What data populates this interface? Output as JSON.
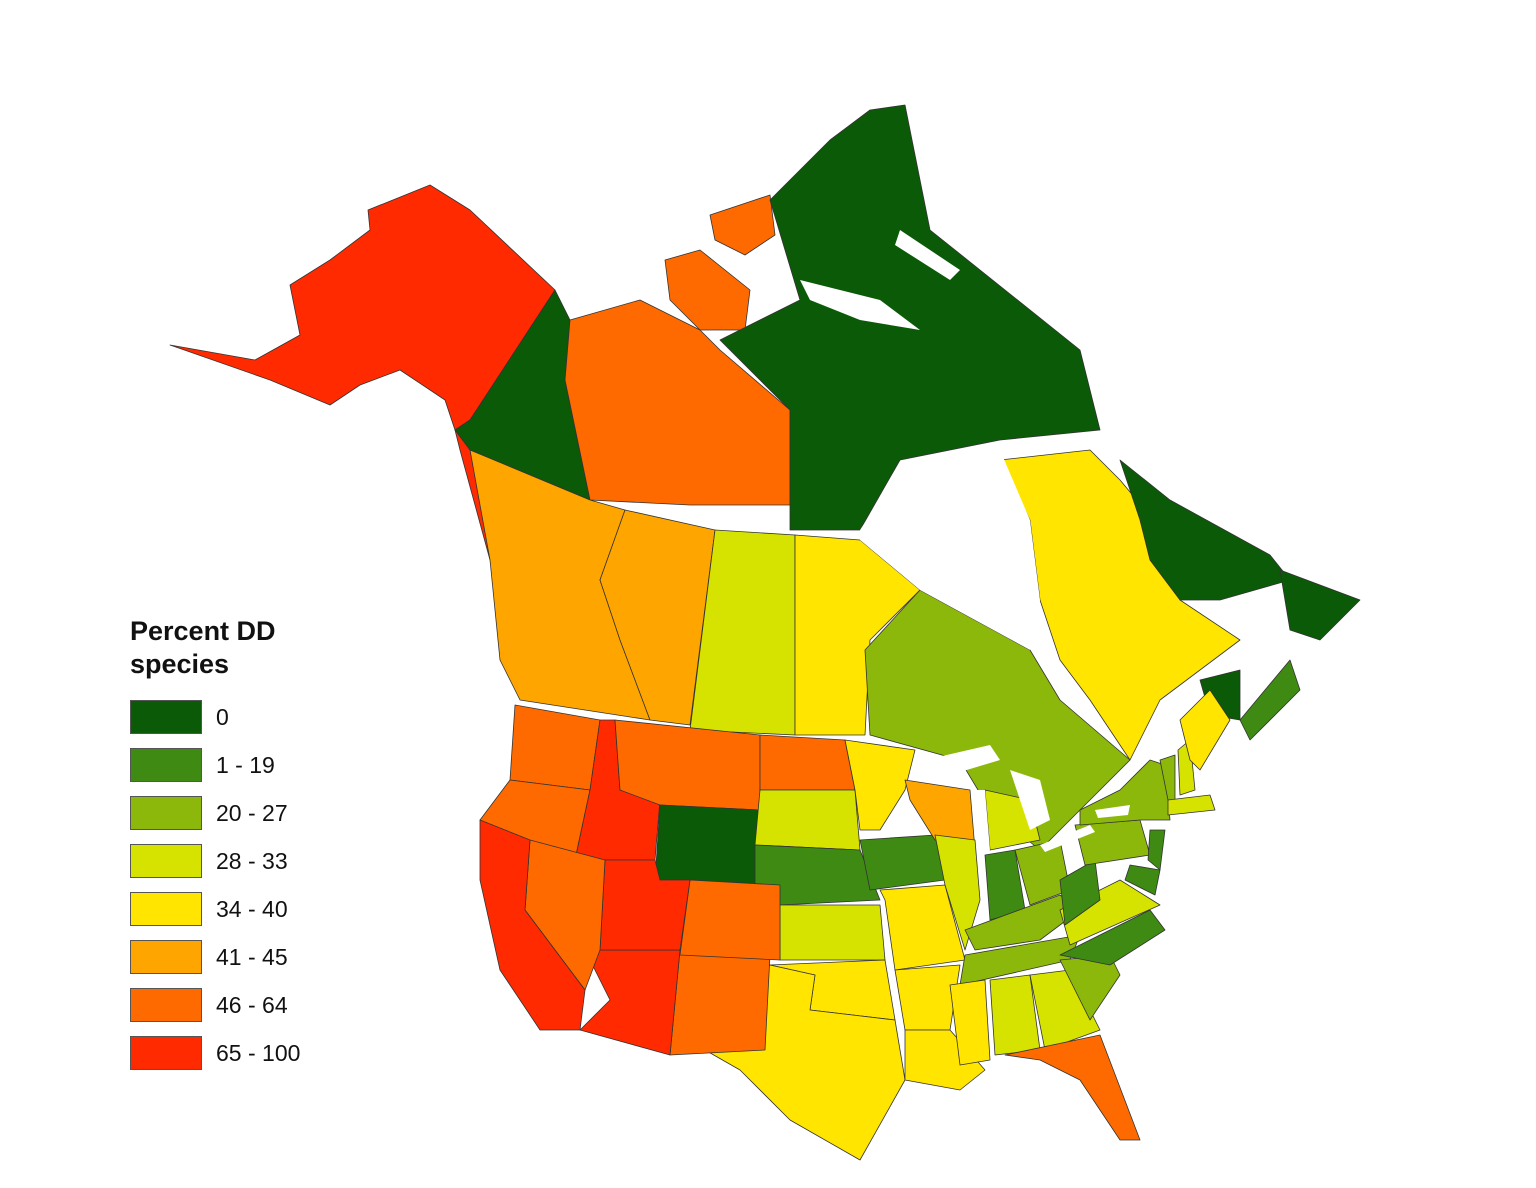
{
  "legend": {
    "title": "Percent DD species",
    "classes": [
      {
        "label": "0",
        "color": "#0b5a07"
      },
      {
        "label": "1 - 19",
        "color": "#3e8a13"
      },
      {
        "label": "20 - 27",
        "color": "#8cb80b"
      },
      {
        "label": "28 - 33",
        "color": "#d6e300"
      },
      {
        "label": "34 - 40",
        "color": "#ffe500"
      },
      {
        "label": "41 - 45",
        "color": "#ffa500"
      },
      {
        "label": "46 - 64",
        "color": "#ff6a00"
      },
      {
        "label": "65 - 100",
        "color": "#ff2a00"
      }
    ]
  },
  "region_classes": {
    "AK": "65 - 100",
    "YT": "0",
    "NT": "46 - 64",
    "NU": "0",
    "BC": "41 - 45",
    "AB": "41 - 45",
    "SK": "28 - 33",
    "MB": "34 - 40",
    "ON": "20 - 27",
    "QC": "34 - 40",
    "NL-LAB": "0",
    "NL-NF": "0",
    "NB": "0",
    "NS": "1 - 19",
    "WA": "46 - 64",
    "OR": "46 - 64",
    "CA": "65 - 100",
    "ID": "65 - 100",
    "NV": "46 - 64",
    "UT": "65 - 100",
    "AZ": "65 - 100",
    "MT": "46 - 64",
    "WY": "0",
    "CO": "46 - 64",
    "NM": "46 - 64",
    "ND": "46 - 64",
    "SD": "28 - 33",
    "NE": "1 - 19",
    "KS": "28 - 33",
    "OK": "34 - 40",
    "TX": "34 - 40",
    "MN": "34 - 40",
    "IA": "1 - 19",
    "MO": "34 - 40",
    "AR": "34 - 40",
    "LA": "34 - 40",
    "WI": "41 - 45",
    "IL": "28 - 33",
    "MI": "28 - 33",
    "IN": "1 - 19",
    "OH": "20 - 27",
    "KY": "20 - 27",
    "TN": "20 - 27",
    "MS": "34 - 40",
    "AL": "28 - 33",
    "GA": "28 - 33",
    "FL": "46 - 64",
    "SC": "20 - 27",
    "NC": "1 - 19",
    "VA": "28 - 33",
    "WV": "1 - 19",
    "PA": "20 - 27",
    "NY": "20 - 27",
    "VT": "20 - 27",
    "NH": "28 - 33",
    "ME": "34 - 40",
    "MA": "28 - 33",
    "NJ": "1 - 19",
    "MD": "1 - 19"
  }
}
